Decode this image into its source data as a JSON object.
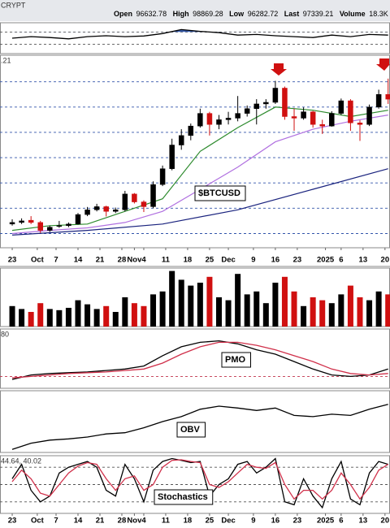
{
  "header": {
    "symbol": "CRYPT",
    "quote": [
      {
        "label": "Open",
        "value": 96632.78
      },
      {
        "label": "High",
        "value": 98869.28
      },
      {
        "label": "Low",
        "value": 96282.72
      },
      {
        "label": "Last",
        "value": 97339.21
      },
      {
        "label": "Volume",
        "value": "18.3K"
      }
    ]
  },
  "chart_data": [
    {
      "type": "line",
      "xlim": [
        -3.9,
        120.6
      ],
      "ylim": [
        0,
        100
      ],
      "yticks": [
        30,
        70
      ],
      "grid_color": "#555",
      "fill_above": 70,
      "fill_color": "#3a5fb0",
      "x": [
        0,
        6,
        12,
        18,
        24,
        30,
        36,
        42,
        48,
        54,
        60,
        66,
        72,
        78,
        84,
        90,
        96,
        102,
        108,
        114,
        120
      ],
      "series": [
        {
          "color": "#000000",
          "values": [
            50,
            55,
            52,
            48,
            55,
            58,
            55,
            57,
            65,
            78,
            72,
            68,
            60,
            62,
            58,
            55,
            52,
            60,
            55,
            62,
            60
          ]
        }
      ]
    },
    {
      "type": "candlestick",
      "label": ".21",
      "annotation": "$BTCUSD",
      "xlim": [
        -3.9,
        120.6
      ],
      "ylim": [
        55500,
        116400
      ],
      "yticks": [
        60000,
        68000,
        76000,
        84000,
        92000,
        100000,
        108000
      ],
      "grid_color": "#3355aa",
      "up_color": "#000000",
      "down_color": "#d01010",
      "x": [
        0,
        3,
        6,
        9,
        12,
        15,
        18,
        21,
        24,
        27,
        30,
        33,
        36,
        39,
        42,
        45,
        48,
        51,
        54,
        57,
        60,
        63,
        66,
        69,
        72,
        75,
        78,
        81,
        84,
        87,
        90,
        93,
        96,
        99,
        102,
        105,
        108,
        111,
        114,
        117,
        120
      ],
      "open": [
        63000,
        63500,
        64200,
        63500,
        61000,
        62300,
        62500,
        63000,
        66000,
        67500,
        68500,
        67000,
        67500,
        72500,
        70000,
        68500,
        75500,
        80500,
        88000,
        91000,
        94000,
        98000,
        94500,
        96000,
        96500,
        98000,
        99500,
        101000,
        101500,
        106000,
        97000,
        96500,
        98500,
        94500,
        94000,
        98000,
        102000,
        95000,
        94500,
        100000,
        104000
      ],
      "high": [
        64500,
        64800,
        65500,
        64000,
        62500,
        64000,
        63500,
        66500,
        68400,
        69400,
        68800,
        68200,
        73500,
        72800,
        70500,
        76500,
        81500,
        90000,
        93000,
        94800,
        99500,
        98500,
        97500,
        98500,
        103500,
        100500,
        102500,
        102500,
        108300,
        106500,
        99500,
        99900,
        98800,
        96000,
        98700,
        102700,
        102500,
        95800,
        100800,
        105500,
        109000
      ],
      "low": [
        62500,
        63000,
        63000,
        60200,
        60500,
        61800,
        62000,
        62800,
        65500,
        67000,
        65400,
        66500,
        67000,
        69500,
        66800,
        68000,
        75000,
        80000,
        86500,
        89500,
        93500,
        91000,
        93000,
        94500,
        95500,
        97000,
        94500,
        99500,
        101000,
        96000,
        92500,
        96000,
        93500,
        91500,
        93800,
        97500,
        92500,
        89300,
        94000,
        99500,
        101000
      ],
      "close": [
        63500,
        64000,
        63500,
        61000,
        62000,
        62500,
        63000,
        66000,
        67500,
        68500,
        67000,
        67500,
        72500,
        70000,
        68500,
        75500,
        80500,
        88000,
        91000,
        94000,
        98000,
        94500,
        96000,
        96500,
        98000,
        99500,
        101000,
        101500,
        106000,
        97000,
        96500,
        98500,
        94500,
        94000,
        98000,
        102000,
        95000,
        94500,
        100000,
        104000,
        102500
      ],
      "overlays": [
        {
          "color": "#2e8b2e",
          "x": [
            0,
            12,
            24,
            36,
            48,
            60,
            72,
            84,
            96,
            108,
            120
          ],
          "values": [
            61000,
            62500,
            63000,
            67000,
            71000,
            86000,
            93500,
            100000,
            99000,
            97000,
            99000
          ]
        },
        {
          "color": "#b070e0",
          "x": [
            0,
            12,
            24,
            36,
            48,
            60,
            72,
            84,
            96,
            108,
            120
          ],
          "values": [
            60000,
            61000,
            61800,
            63500,
            67000,
            74000,
            81000,
            89000,
            93000,
            95500,
            97500
          ]
        },
        {
          "color": "#1a237e",
          "x": [
            0,
            24,
            48,
            72,
            96,
            120
          ],
          "values": [
            59500,
            61000,
            63000,
            67500,
            74000,
            80500
          ]
        }
      ],
      "xticks": [
        {
          "value": 0,
          "label": "23"
        },
        {
          "value": 8,
          "label": "Oct"
        },
        {
          "value": 14,
          "label": "7"
        },
        {
          "value": 21,
          "label": "14"
        },
        {
          "value": 28,
          "label": "21"
        },
        {
          "value": 35,
          "label": "28"
        },
        {
          "value": 39,
          "label": "Nov"
        },
        {
          "value": 42,
          "label": "4"
        },
        {
          "value": 49,
          "label": "11"
        },
        {
          "value": 56,
          "label": "18"
        },
        {
          "value": 63,
          "label": "25"
        },
        {
          "value": 69,
          "label": "Dec"
        },
        {
          "value": 77,
          "label": "9"
        },
        {
          "value": 84,
          "label": "16"
        },
        {
          "value": 91,
          "label": "23"
        },
        {
          "value": 100,
          "label": "2025"
        },
        {
          "value": 105,
          "label": "6"
        },
        {
          "value": 112,
          "label": "13"
        },
        {
          "value": 119,
          "label": "20"
        }
      ]
    },
    {
      "type": "bar",
      "xlim": [
        -3.9,
        120.6
      ],
      "ylim": [
        0,
        100
      ],
      "x": [
        0,
        3,
        6,
        9,
        12,
        15,
        18,
        21,
        24,
        27,
        30,
        33,
        36,
        39,
        42,
        45,
        48,
        51,
        54,
        57,
        60,
        63,
        66,
        69,
        72,
        75,
        78,
        81,
        84,
        87,
        90,
        93,
        96,
        99,
        102,
        105,
        108,
        111,
        114,
        117,
        120
      ],
      "values": [
        35,
        30,
        25,
        40,
        30,
        28,
        32,
        45,
        38,
        30,
        35,
        25,
        50,
        40,
        35,
        55,
        60,
        95,
        80,
        70,
        75,
        85,
        50,
        45,
        90,
        55,
        60,
        40,
        75,
        85,
        60,
        35,
        50,
        45,
        40,
        55,
        70,
        50,
        45,
        60,
        55
      ]
    },
    {
      "type": "line",
      "title": "PMO",
      "label": "80",
      "xlim": [
        -3.9,
        120.6
      ],
      "ylim": [
        -0.8,
        3.2
      ],
      "yticks": [
        0
      ],
      "grid_color": "#c0304a",
      "x": [
        0,
        6,
        12,
        18,
        24,
        30,
        36,
        42,
        48,
        54,
        60,
        66,
        72,
        78,
        84,
        90,
        96,
        102,
        108,
        114,
        120
      ],
      "series": [
        {
          "color": "#000000",
          "values": [
            -0.2,
            0.1,
            0.2,
            0.25,
            0.3,
            0.4,
            0.5,
            0.7,
            1.4,
            2.0,
            2.3,
            2.4,
            2.2,
            1.8,
            1.5,
            1.0,
            0.5,
            0.1,
            0.0,
            0.1,
            0.5
          ]
        },
        {
          "color": "#d0304a",
          "values": [
            -0.1,
            0.0,
            0.1,
            0.2,
            0.25,
            0.3,
            0.4,
            0.5,
            0.9,
            1.5,
            2.0,
            2.3,
            2.3,
            2.1,
            1.8,
            1.4,
            1.0,
            0.5,
            0.2,
            0.1,
            0.2
          ]
        }
      ]
    },
    {
      "type": "line",
      "title": "OBV",
      "xlim": [
        -3.9,
        120.6
      ],
      "ylim": [
        0,
        100
      ],
      "x": [
        0,
        6,
        12,
        18,
        24,
        30,
        36,
        42,
        48,
        54,
        60,
        66,
        72,
        78,
        84,
        90,
        96,
        102,
        108,
        114,
        120
      ],
      "series": [
        {
          "color": "#000000",
          "values": [
            5,
            15,
            20,
            22,
            25,
            30,
            32,
            40,
            50,
            58,
            70,
            75,
            72,
            68,
            72,
            60,
            58,
            62,
            60,
            70,
            78
          ]
        }
      ]
    },
    {
      "type": "line",
      "title": "Stochastics",
      "label": "44.64, 40.02",
      "xlim": [
        -3.9,
        120.6
      ],
      "ylim": [
        0,
        100
      ],
      "yticks": [
        20,
        50,
        80
      ],
      "grid_color": "#555",
      "x": [
        0,
        3,
        6,
        9,
        12,
        15,
        18,
        21,
        24,
        27,
        30,
        33,
        36,
        39,
        42,
        45,
        48,
        51,
        54,
        57,
        60,
        63,
        66,
        69,
        72,
        75,
        78,
        81,
        84,
        87,
        90,
        93,
        96,
        99,
        102,
        105,
        108,
        111,
        114,
        117,
        120
      ],
      "series": [
        {
          "color": "#000000",
          "values": [
            60,
            85,
            40,
            20,
            30,
            70,
            80,
            85,
            90,
            80,
            40,
            30,
            85,
            60,
            20,
            75,
            90,
            95,
            92,
            88,
            90,
            30,
            50,
            60,
            85,
            90,
            70,
            80,
            95,
            20,
            15,
            60,
            30,
            10,
            60,
            90,
            25,
            15,
            70,
            90,
            85
          ]
        },
        {
          "color": "#d0304a",
          "values": [
            55,
            75,
            60,
            35,
            30,
            50,
            70,
            82,
            88,
            85,
            60,
            40,
            60,
            65,
            40,
            50,
            80,
            92,
            93,
            90,
            88,
            50,
            45,
            55,
            70,
            85,
            80,
            78,
            88,
            50,
            25,
            40,
            40,
            25,
            40,
            70,
            50,
            25,
            45,
            75,
            85
          ]
        }
      ],
      "xticks": [
        {
          "value": 0,
          "label": "23"
        },
        {
          "value": 8,
          "label": "Oct"
        },
        {
          "value": 14,
          "label": "7"
        },
        {
          "value": 21,
          "label": "14"
        },
        {
          "value": 28,
          "label": "21"
        },
        {
          "value": 35,
          "label": "28"
        },
        {
          "value": 39,
          "label": "Nov"
        },
        {
          "value": 42,
          "label": "4"
        },
        {
          "value": 49,
          "label": "11"
        },
        {
          "value": 56,
          "label": "18"
        },
        {
          "value": 63,
          "label": "25"
        },
        {
          "value": 69,
          "label": "Dec"
        },
        {
          "value": 77,
          "label": "9"
        },
        {
          "value": 84,
          "label": "16"
        },
        {
          "value": 91,
          "label": "23"
        },
        {
          "value": 100,
          "label": "2025"
        },
        {
          "value": 105,
          "label": "6"
        },
        {
          "value": 112,
          "label": "13"
        },
        {
          "value": 119,
          "label": "20"
        }
      ]
    }
  ]
}
